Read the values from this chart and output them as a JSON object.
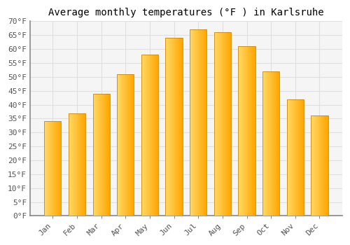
{
  "title": "Average monthly temperatures (°F ) in Karlsruhe",
  "months": [
    "Jan",
    "Feb",
    "Mar",
    "Apr",
    "May",
    "Jun",
    "Jul",
    "Aug",
    "Sep",
    "Oct",
    "Nov",
    "Dec"
  ],
  "values": [
    34.0,
    37.0,
    44.0,
    51.0,
    58.0,
    64.0,
    67.0,
    66.0,
    61.0,
    52.0,
    42.0,
    36.0
  ],
  "bar_color_left": "#FFD966",
  "bar_color_right": "#FFA500",
  "bar_edge_color": "#CC8800",
  "ylim": [
    0,
    70
  ],
  "ytick_step": 5,
  "plot_bg_color": "#F5F5F5",
  "fig_bg_color": "#FFFFFF",
  "grid_color": "#E0E0E0",
  "title_fontsize": 10,
  "tick_fontsize": 8,
  "font_family": "monospace",
  "bar_width": 0.7
}
